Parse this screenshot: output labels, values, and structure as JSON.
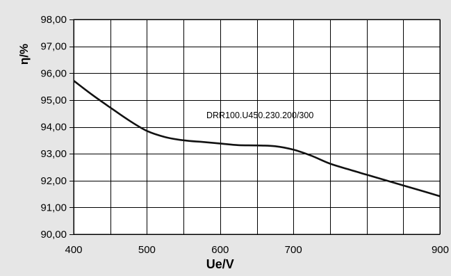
{
  "chart_data": {
    "type": "line",
    "xlabel": "Ue/V",
    "ylabel": "η/%",
    "xlim": [
      400,
      900
    ],
    "ylim": [
      90,
      98
    ],
    "x_ticks": [
      400,
      450,
      500,
      550,
      600,
      650,
      700,
      750,
      800,
      850,
      900
    ],
    "x_tick_labels": [
      "400",
      "500",
      "600",
      "700",
      "900"
    ],
    "x_tick_label_values": [
      400,
      500,
      600,
      700,
      900
    ],
    "y_ticks": [
      90,
      91,
      92,
      93,
      94,
      95,
      96,
      97,
      98
    ],
    "y_tick_labels": [
      "90,00",
      "91,00",
      "92,00",
      "93,00",
      "94,00",
      "95,00",
      "96,00",
      "97,00",
      "98,00"
    ],
    "grid": true,
    "annotation": "DRR100.U450.230.200/300",
    "series": [
      {
        "x": [
          400,
          425,
          450,
          475,
          500,
          525,
          550,
          575,
          600,
          625,
          650,
          675,
          700,
          725,
          750,
          775,
          800,
          825,
          850,
          875,
          900
        ],
        "y": [
          95.72,
          95.2,
          94.72,
          94.25,
          93.85,
          93.62,
          93.5,
          93.44,
          93.38,
          93.32,
          93.31,
          93.28,
          93.15,
          92.92,
          92.63,
          92.42,
          92.22,
          92.02,
          91.82,
          91.62,
          91.42
        ]
      }
    ],
    "colors": {
      "line": "#111111",
      "grid": "#000000",
      "plot_bg": "#ffffff",
      "page_bg": "#e6e6e6"
    }
  }
}
